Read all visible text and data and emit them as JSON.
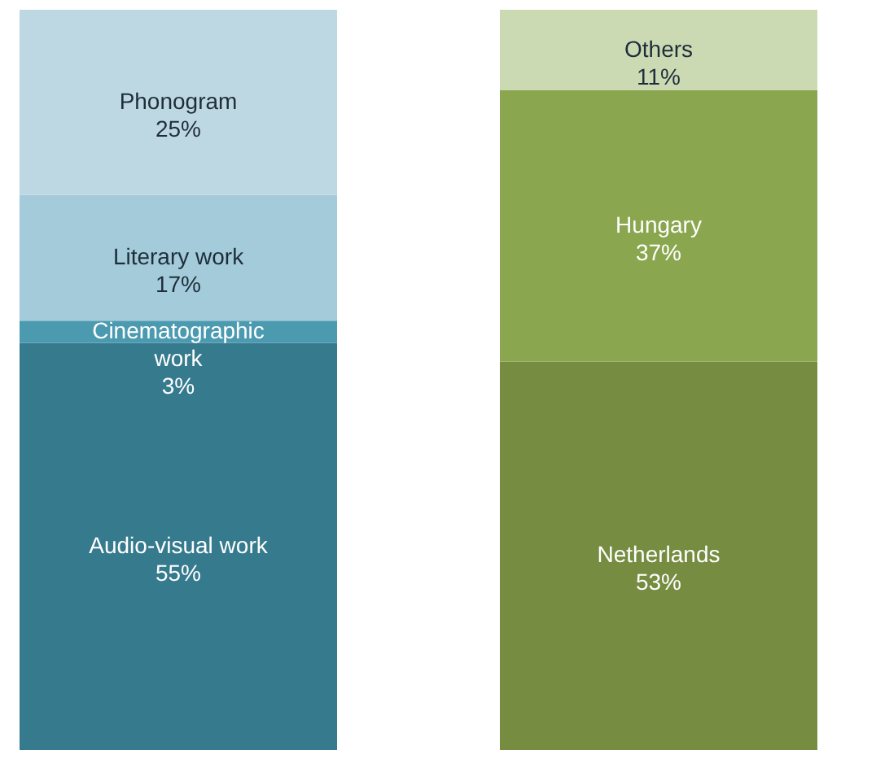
{
  "chart_data": [
    {
      "type": "bar",
      "stacked": true,
      "categories": [
        null
      ],
      "series": [
        {
          "name": "Audio-visual work",
          "color": "#367a8e",
          "values": [
            55
          ],
          "value_labels": [
            "55%"
          ]
        },
        {
          "name": "Cinematographic work",
          "color": "#4b9ab0",
          "values": [
            3
          ],
          "value_labels": [
            "3%"
          ]
        },
        {
          "name": "Literary work",
          "color": "#a3cbd9",
          "values": [
            17
          ],
          "value_labels": [
            "17%"
          ]
        },
        {
          "name": "Phonogram",
          "color": "#bdd8e2",
          "values": [
            25
          ],
          "value_labels": [
            "25%"
          ]
        }
      ]
    },
    {
      "type": "bar",
      "stacked": true,
      "categories": [
        null
      ],
      "series": [
        {
          "name": "Netherlands",
          "color": "#768c40",
          "values": [
            53
          ],
          "value_labels": [
            "53%"
          ]
        },
        {
          "name": "Hungary",
          "color": "#8aa64e",
          "values": [
            37
          ],
          "value_labels": [
            "37%"
          ]
        },
        {
          "name": "Others",
          "color": "#cbdab3",
          "values": [
            11
          ],
          "value_labels": [
            "11%"
          ]
        }
      ]
    }
  ]
}
